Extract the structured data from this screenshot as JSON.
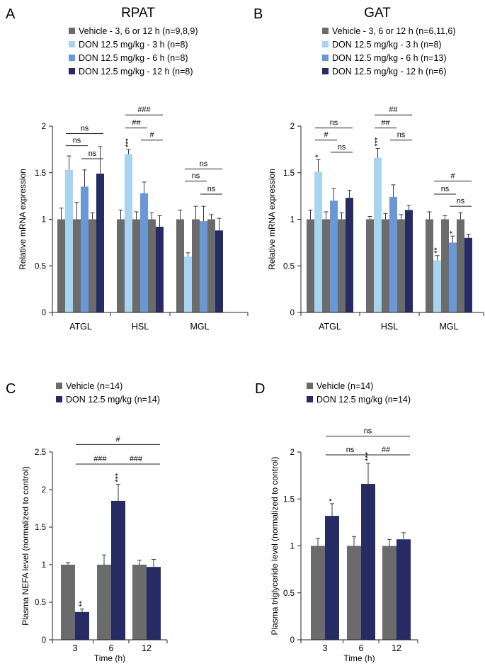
{
  "colors": {
    "vehicle": "#6b6b6b",
    "don3": "#a9d4f0",
    "don6": "#6a98d6",
    "don12": "#262c63",
    "axis": "#1a1a1a"
  },
  "chart_data": [
    {
      "panel": "A",
      "type": "bar",
      "title": "RPAT",
      "xlabel": "",
      "ylabel": "Relative mRNA expression",
      "ylim": [
        0,
        2
      ],
      "yticks": [
        "0",
        "0.5",
        "1",
        "1.5",
        "2"
      ],
      "categories": [
        "ATGL",
        "HSL",
        "MGL"
      ],
      "series": [
        {
          "name": "Vehicle - 3, 6 or 12 h (n=9,8,9)",
          "color_key": "vehicle"
        },
        {
          "name": "DON 12.5 mg/kg - 3 h (n=8)",
          "color_key": "don3"
        },
        {
          "name": "DON 12.5 mg/kg - 6 h (n=8)",
          "color_key": "don6"
        },
        {
          "name": "DON 12.5 mg/kg - 12 h (n=8)",
          "color_key": "don12"
        }
      ],
      "groups": [
        {
          "bars": [
            {
              "color_key": "vehicle",
              "value": 1.0,
              "err": 0.12
            },
            {
              "color_key": "don3",
              "value": 1.53,
              "err": 0.15
            },
            {
              "color_key": "vehicle",
              "value": 1.0,
              "err": 0.18
            },
            {
              "color_key": "don6",
              "value": 1.35,
              "err": 0.18
            },
            {
              "color_key": "vehicle",
              "value": 1.0,
              "err": 0.07
            },
            {
              "color_key": "don12",
              "value": 1.49,
              "err": 0.29
            }
          ]
        },
        {
          "bars": [
            {
              "color_key": "vehicle",
              "value": 1.0,
              "err": 0.1
            },
            {
              "color_key": "don3",
              "value": 1.7,
              "err": 0.05,
              "star": "***"
            },
            {
              "color_key": "vehicle",
              "value": 1.0,
              "err": 0.08
            },
            {
              "color_key": "don6",
              "value": 1.28,
              "err": 0.12
            },
            {
              "color_key": "vehicle",
              "value": 1.0,
              "err": 0.07
            },
            {
              "color_key": "don12",
              "value": 0.92,
              "err": 0.12
            }
          ]
        },
        {
          "bars": [
            {
              "color_key": "vehicle",
              "value": 1.0,
              "err": 0.1
            },
            {
              "color_key": "don3",
              "value": 0.6,
              "err": 0.04
            },
            {
              "color_key": "vehicle",
              "value": 1.0,
              "err": 0.14
            },
            {
              "color_key": "don6",
              "value": 0.98,
              "err": 0.16
            },
            {
              "color_key": "vehicle",
              "value": 1.0,
              "err": 0.05
            },
            {
              "color_key": "don12",
              "value": 0.88,
              "err": 0.13
            }
          ]
        }
      ],
      "comparisons": [
        {
          "label": "ns",
          "group": 0,
          "from": 1,
          "to": 5,
          "y": 1.92
        },
        {
          "label": "ns",
          "group": 0,
          "from": 1,
          "to": 3,
          "y": 1.79
        },
        {
          "label": "ns",
          "group": 0,
          "from": 3,
          "to": 5,
          "y": 1.65
        },
        {
          "label": "###",
          "group": 1,
          "from": 1,
          "to": 5,
          "y": 2.12
        },
        {
          "label": "##",
          "group": 1,
          "from": 1,
          "to": 3,
          "y": 1.98
        },
        {
          "label": "#",
          "group": 1,
          "from": 3,
          "to": 5,
          "y": 1.85
        },
        {
          "label": "ns",
          "group": 2,
          "from": 1,
          "to": 5,
          "y": 1.54
        },
        {
          "label": "ns",
          "group": 2,
          "from": 1,
          "to": 3,
          "y": 1.41
        },
        {
          "label": "ns",
          "group": 2,
          "from": 3,
          "to": 5,
          "y": 1.27
        }
      ]
    },
    {
      "panel": "B",
      "type": "bar",
      "title": "GAT",
      "xlabel": "",
      "ylabel": "Relative mRNA expression",
      "ylim": [
        0,
        2
      ],
      "yticks": [
        "0",
        "0.5",
        "1",
        "1.5",
        "2"
      ],
      "categories": [
        "ATGL",
        "HSL",
        "MGL"
      ],
      "series": [
        {
          "name": "Vehicle - 3, 6 or 12 h (n=6,11,6)",
          "color_key": "vehicle"
        },
        {
          "name": "DON 12.5 mg/kg - 3 h (n=8)",
          "color_key": "don3"
        },
        {
          "name": "DON 12.5 mg/kg - 6 h (n=13)",
          "color_key": "don6"
        },
        {
          "name": "DON 12.5 mg/kg - 12 h (n=6)",
          "color_key": "don12"
        }
      ],
      "groups": [
        {
          "bars": [
            {
              "color_key": "vehicle",
              "value": 1.0,
              "err": 0.1
            },
            {
              "color_key": "don3",
              "value": 1.51,
              "err": 0.13,
              "star": "*"
            },
            {
              "color_key": "vehicle",
              "value": 1.0,
              "err": 0.08
            },
            {
              "color_key": "don6",
              "value": 1.2,
              "err": 0.13
            },
            {
              "color_key": "vehicle",
              "value": 1.0,
              "err": 0.07
            },
            {
              "color_key": "don12",
              "value": 1.23,
              "err": 0.08
            }
          ]
        },
        {
          "bars": [
            {
              "color_key": "vehicle",
              "value": 1.0,
              "err": 0.03
            },
            {
              "color_key": "don3",
              "value": 1.66,
              "err": 0.1,
              "star": "***"
            },
            {
              "color_key": "vehicle",
              "value": 1.0,
              "err": 0.06
            },
            {
              "color_key": "don6",
              "value": 1.24,
              "err": 0.13
            },
            {
              "color_key": "vehicle",
              "value": 1.0,
              "err": 0.05
            },
            {
              "color_key": "don12",
              "value": 1.1,
              "err": 0.05
            }
          ]
        },
        {
          "bars": [
            {
              "color_key": "vehicle",
              "value": 1.0,
              "err": 0.08
            },
            {
              "color_key": "don3",
              "value": 0.56,
              "err": 0.05,
              "star": "**"
            },
            {
              "color_key": "vehicle",
              "value": 1.0,
              "err": 0.04
            },
            {
              "color_key": "don6",
              "value": 0.75,
              "err": 0.07,
              "star": "*"
            },
            {
              "color_key": "vehicle",
              "value": 1.0,
              "err": 0.07
            },
            {
              "color_key": "don12",
              "value": 0.8,
              "err": 0.04
            }
          ]
        }
      ],
      "comparisons": [
        {
          "label": "ns",
          "group": 0,
          "from": 1,
          "to": 5,
          "y": 1.98
        },
        {
          "label": "#",
          "group": 0,
          "from": 1,
          "to": 3,
          "y": 1.85
        },
        {
          "label": "ns",
          "group": 0,
          "from": 3,
          "to": 5,
          "y": 1.72
        },
        {
          "label": "##",
          "group": 1,
          "from": 1,
          "to": 5,
          "y": 2.12
        },
        {
          "label": "##",
          "group": 1,
          "from": 1,
          "to": 3,
          "y": 1.98
        },
        {
          "label": "ns",
          "group": 1,
          "from": 3,
          "to": 5,
          "y": 1.85
        },
        {
          "label": "#",
          "group": 2,
          "from": 1,
          "to": 5,
          "y": 1.41
        },
        {
          "label": "ns",
          "group": 2,
          "from": 1,
          "to": 3,
          "y": 1.27
        },
        {
          "label": "ns",
          "group": 2,
          "from": 3,
          "to": 5,
          "y": 1.14
        }
      ]
    },
    {
      "panel": "C",
      "type": "bar",
      "title": "",
      "xlabel": "Time (h)",
      "ylabel": "Plasma NEFA level (normalized to control)",
      "ylim": [
        0,
        2.5
      ],
      "yticks": [
        "0",
        "0.5",
        "1",
        "1.5",
        "2",
        "2.5"
      ],
      "categories": [
        "3",
        "6",
        "12"
      ],
      "series": [
        {
          "name": "Vehicle (n=14)",
          "color_key": "vehicle"
        },
        {
          "name": "DON 12.5 mg/kg (n=14)",
          "color_key": "don12"
        }
      ],
      "groups": [
        {
          "bars": [
            {
              "color_key": "vehicle",
              "value": 1.0,
              "err": 0.03
            },
            {
              "color_key": "don12",
              "value": 0.37,
              "err": 0.04,
              "star": "**"
            }
          ]
        },
        {
          "bars": [
            {
              "color_key": "vehicle",
              "value": 1.0,
              "err": 0.13
            },
            {
              "color_key": "don12",
              "value": 1.85,
              "err": 0.22,
              "star": "***"
            }
          ]
        },
        {
          "bars": [
            {
              "color_key": "vehicle",
              "value": 1.0,
              "err": 0.06
            },
            {
              "color_key": "don12",
              "value": 0.97,
              "err": 0.1
            }
          ]
        }
      ],
      "comparisons": [
        {
          "label": "#",
          "group": 0,
          "gto": 2,
          "from": 1,
          "to": 1,
          "y": 2.6
        },
        {
          "label": "###",
          "group": 0,
          "gto": 1,
          "from": 1,
          "to": 1,
          "y": 2.34
        },
        {
          "label": "###",
          "group": 1,
          "gto": 2,
          "from": 1,
          "to": 1,
          "y": 2.34
        }
      ]
    },
    {
      "panel": "D",
      "type": "bar",
      "title": "",
      "xlabel": "Time (h)",
      "ylabel": "Plasma triglyceride level (normalized to control)",
      "ylim": [
        0,
        2
      ],
      "yticks": [
        "0",
        "0.5",
        "1",
        "1.5",
        "2"
      ],
      "categories": [
        "3",
        "6",
        "12"
      ],
      "series": [
        {
          "name": "Vehicle (n=14)",
          "color_key": "vehicle"
        },
        {
          "name": "DON 12.5 mg/kg (n=14)",
          "color_key": "don12"
        }
      ],
      "groups": [
        {
          "bars": [
            {
              "color_key": "vehicle",
              "value": 1.0,
              "err": 0.08
            },
            {
              "color_key": "don12",
              "value": 1.32,
              "err": 0.13,
              "star": "*"
            }
          ]
        },
        {
          "bars": [
            {
              "color_key": "vehicle",
              "value": 1.0,
              "err": 0.1
            },
            {
              "color_key": "don12",
              "value": 1.66,
              "err": 0.22,
              "star": "***"
            }
          ]
        },
        {
          "bars": [
            {
              "color_key": "vehicle",
              "value": 1.0,
              "err": 0.07
            },
            {
              "color_key": "don12",
              "value": 1.07,
              "err": 0.07
            }
          ]
        }
      ],
      "comparisons": [
        {
          "label": "ns",
          "group": 0,
          "gto": 2,
          "from": 1,
          "to": 1,
          "y": 2.17
        },
        {
          "label": "ns",
          "group": 0,
          "gto": 1,
          "from": 1,
          "to": 1,
          "y": 1.97
        },
        {
          "label": "##",
          "group": 1,
          "gto": 2,
          "from": 1,
          "to": 1,
          "y": 1.97
        }
      ]
    }
  ]
}
